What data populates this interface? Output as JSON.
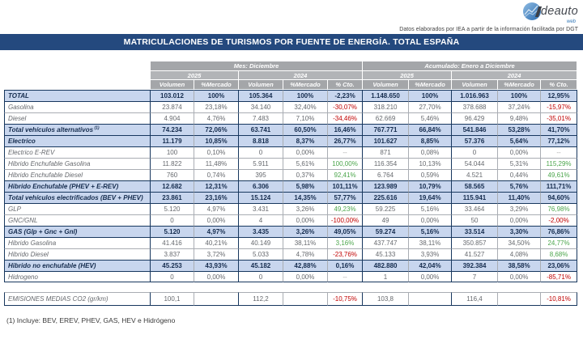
{
  "branding": {
    "logo_text": "deauto",
    "logo_sub": "web",
    "tagline": "Datos elaborados por IEA a partir de la información facilitada por DGT"
  },
  "title": "MATRICULACIONES DE TURISMOS POR FUENTE DE ENERGÍA. TOTAL ESPAÑA",
  "palette": {
    "title_bar": "#24497E",
    "header_gray": "#A4A6A9",
    "header_gray_light": "#B2B4B7",
    "row_blue": "#C8D6EE",
    "border_navy": "#17375E",
    "border_light": "#A9ADB3",
    "positive": "#4CA64C",
    "negative": "#C00000",
    "dash": "#A6A6A6",
    "text_gray": "#66696E",
    "text_dark": "#152C4E",
    "logo_blue": "#2E75B6"
  },
  "table": {
    "groups": [
      {
        "label": "Mes: Diciembre",
        "years": [
          "2025",
          "2024"
        ]
      },
      {
        "label": "Acumulado: Enero a Diciembre",
        "years": [
          "2025",
          "2024"
        ]
      }
    ],
    "col_headers": [
      "Volumen",
      "%Mercado",
      "Volumen",
      "%Mercado",
      "% Cto.",
      "Volumen",
      "%Mercado",
      "Volumen",
      "%Mercado",
      "% Cto."
    ],
    "rows": [
      {
        "label": "TOTAL",
        "style": "total",
        "cells": [
          "103.012",
          "100%",
          "105.364",
          "100%",
          "-2,23%",
          "1.148.650",
          "100%",
          "1.016.963",
          "100%",
          "12,95%"
        ]
      },
      {
        "label": "Gasolina",
        "style": "normal",
        "cells": [
          "23.874",
          "23,18%",
          "34.140",
          "32,40%",
          "-30,07%",
          "318.210",
          "27,70%",
          "378.688",
          "37,24%",
          "-15,97%"
        ]
      },
      {
        "label": "Diesel",
        "style": "normal",
        "cells": [
          "4.904",
          "4,76%",
          "7.483",
          "7,10%",
          "-34,46%",
          "62.669",
          "5,46%",
          "96.429",
          "9,48%",
          "-35,01%"
        ]
      },
      {
        "label": "Total vehículos alternativos",
        "sup": "(1)",
        "style": "summary",
        "cells": [
          "74.234",
          "72,06%",
          "63.741",
          "60,50%",
          "16,46%",
          "767.771",
          "66,84%",
          "541.846",
          "53,28%",
          "41,70%"
        ]
      },
      {
        "label": "Electrico",
        "style": "summary",
        "cells": [
          "11.179",
          "10,85%",
          "8.818",
          "8,37%",
          "26,77%",
          "101.627",
          "8,85%",
          "57.376",
          "5,64%",
          "77,12%"
        ]
      },
      {
        "label": "Electrico E-REV",
        "style": "normal",
        "cells": [
          "100",
          "0,10%",
          "0",
          "0,00%",
          "--",
          "871",
          "0,08%",
          "0",
          "0,00%",
          "--"
        ]
      },
      {
        "label": "Hibrido Enchufable Gasolina",
        "style": "normal",
        "cells": [
          "11.822",
          "11,48%",
          "5.911",
          "5,61%",
          "100,00%",
          "116.354",
          "10,13%",
          "54.044",
          "5,31%",
          "115,29%"
        ]
      },
      {
        "label": "Hibrido Enchufable Diesel",
        "style": "normal",
        "cells": [
          "760",
          "0,74%",
          "395",
          "0,37%",
          "92,41%",
          "6.764",
          "0,59%",
          "4.521",
          "0,44%",
          "49,61%"
        ]
      },
      {
        "label": "Hibrido Enchufable (PHEV + E-REV)",
        "style": "summary",
        "cells": [
          "12.682",
          "12,31%",
          "6.306",
          "5,98%",
          "101,11%",
          "123.989",
          "10,79%",
          "58.565",
          "5,76%",
          "111,71%"
        ]
      },
      {
        "label": "Total vehículos electrificados (BEV + PHEV)",
        "style": "summary",
        "cells": [
          "23.861",
          "23,16%",
          "15.124",
          "14,35%",
          "57,77%",
          "225.616",
          "19,64%",
          "115.941",
          "11,40%",
          "94,60%"
        ]
      },
      {
        "label": "GLP",
        "style": "normal",
        "cells": [
          "5.120",
          "4,97%",
          "3.431",
          "3,26%",
          "49,23%",
          "59.225",
          "5,16%",
          "33.464",
          "3,29%",
          "76,98%"
        ]
      },
      {
        "label": "GNC/GNL",
        "style": "normal",
        "cells": [
          "0",
          "0,00%",
          "4",
          "0,00%",
          "-100,00%",
          "49",
          "0,00%",
          "50",
          "0,00%",
          "-2,00%"
        ]
      },
      {
        "label": "GAS (Glp + Gnc + Gnl)",
        "style": "summary",
        "cells": [
          "5.120",
          "4,97%",
          "3.435",
          "3,26%",
          "49,05%",
          "59.274",
          "5,16%",
          "33.514",
          "3,30%",
          "76,86%"
        ]
      },
      {
        "label": "Hibrido Gasolina",
        "style": "normal",
        "cells": [
          "41.416",
          "40,21%",
          "40.149",
          "38,11%",
          "3,16%",
          "437.747",
          "38,11%",
          "350.857",
          "34,50%",
          "24,77%"
        ]
      },
      {
        "label": "Hibrido Diesel",
        "style": "normal",
        "cells": [
          "3.837",
          "3,72%",
          "5.033",
          "4,78%",
          "-23,76%",
          "45.133",
          "3,93%",
          "41.527",
          "4,08%",
          "8,68%"
        ]
      },
      {
        "label": "Hibrido no enchufable (HEV)",
        "style": "summary",
        "cells": [
          "45.253",
          "43,93%",
          "45.182",
          "42,88%",
          "0,16%",
          "482.880",
          "42,04%",
          "392.384",
          "38,58%",
          "23,06%"
        ]
      },
      {
        "label": "Hidrogeno",
        "style": "normal",
        "cells": [
          "0",
          "0,00%",
          "0",
          "0,00%",
          "--",
          "1",
          "0,00%",
          "7",
          "0,00%",
          "-85,71%"
        ]
      }
    ]
  },
  "emissions": {
    "label": "EMISIONES MEDIAS CO2 (gr/km)",
    "cells": [
      "100,1",
      "",
      "112,2",
      "",
      "-10,75%",
      "103,8",
      "",
      "116,4",
      "",
      "-10,81%"
    ]
  },
  "footnote": "(1) Incluye: BEV, EREV, PHEV, GAS, HEV e Hidrógeno"
}
